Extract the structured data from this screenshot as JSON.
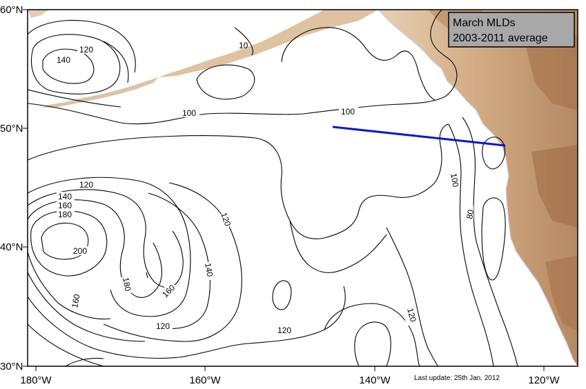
{
  "map": {
    "legend": {
      "line1": "March MLDs",
      "line2": "2003-2011 average"
    },
    "footnote": "Last update: 25th Jan. 2012",
    "lat_labels": [
      "60°N",
      "50°N",
      "40°N",
      "30°N"
    ],
    "lon_labels": [
      "180°W",
      "160°W",
      "140°W",
      "120°W"
    ],
    "contour_labels": {
      "c120_nw": "120",
      "c140_nw": "140",
      "c10_frag": "10",
      "c100_left": "100",
      "c100_right": "100",
      "c120_w": "120",
      "c140_w": "140",
      "c160_w": "160",
      "c180_w": "180",
      "c200": "200",
      "c120_mid": "120",
      "c140_mid": "140",
      "c160_mid": "160",
      "c180_mid": "180",
      "c160_sw": "160",
      "c120_s": "120",
      "c120_se": "120",
      "c120_sc": "120",
      "c100_coast": "100",
      "c80_coast": "80"
    },
    "colors": {
      "land": "#d9b48a",
      "land_dark": "#b07a4e",
      "transect": "#0a14d6",
      "coastline": "#c8cde8"
    },
    "transect_label": ""
  }
}
